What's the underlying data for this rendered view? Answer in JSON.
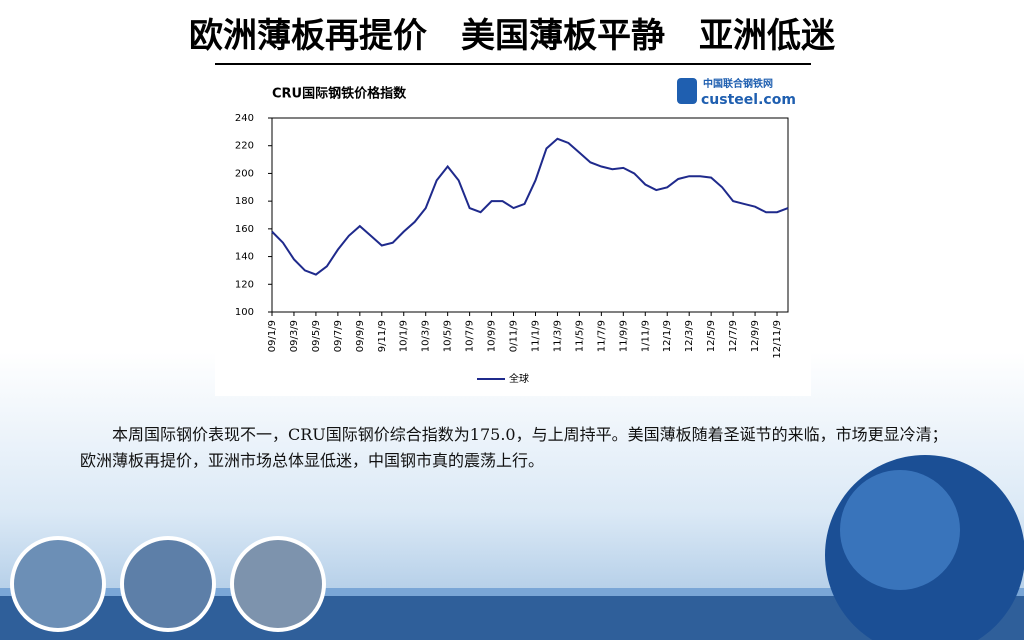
{
  "slide_title": "欧洲薄板再提价　美国薄板平静　亚洲低迷",
  "logo": {
    "name": "中国联合钢铁网",
    "site": "custeel.com"
  },
  "paragraph": "本周国际钢价表现不一，CRU国际钢价综合指数为175.0，与上周持平。美国薄板随着圣诞节的来临，市场更显冷清；欧洲薄板再提价，亚洲市场总体显低迷，中国钢市真的震荡上行。",
  "chart_data": {
    "type": "line",
    "title": "CRU国际钢铁价格指数",
    "categories": [
      "09/1/9",
      null,
      "09/3/9",
      null,
      "09/5/9",
      null,
      "09/7/9",
      null,
      "09/9/9",
      null,
      "9/11/9",
      null,
      "10/1/9",
      null,
      "10/3/9",
      null,
      "10/5/9",
      null,
      "10/7/9",
      null,
      "10/9/9",
      null,
      "0/11/9",
      null,
      "11/1/9",
      null,
      "11/3/9",
      null,
      "11/5/9",
      null,
      "11/7/9",
      null,
      "11/9/9",
      null,
      "1/11/9",
      null,
      "12/1/9",
      null,
      "12/3/9",
      null,
      "12/5/9",
      null,
      "12/7/9",
      null,
      "12/9/9",
      null,
      "12/11/9",
      null
    ],
    "series": [
      {
        "name": "全球",
        "color": "#1f2a8c",
        "values": [
          158,
          150,
          138,
          130,
          127,
          133,
          145,
          155,
          162,
          155,
          148,
          150,
          158,
          165,
          175,
          195,
          205,
          195,
          175,
          172,
          180,
          180,
          175,
          178,
          195,
          218,
          225,
          222,
          215,
          208,
          205,
          203,
          204,
          200,
          192,
          188,
          190,
          196,
          198,
          198,
          197,
          190,
          180,
          178,
          176,
          172,
          172,
          175
        ]
      }
    ],
    "ylim": [
      100,
      240
    ],
    "yticks": [
      100,
      120,
      140,
      160,
      180,
      200,
      220,
      240
    ],
    "legend": "bottom"
  }
}
